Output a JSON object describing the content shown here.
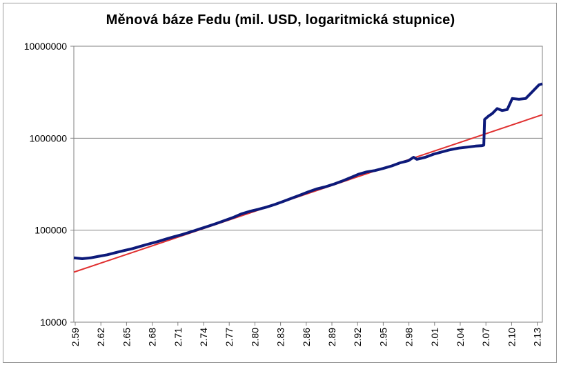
{
  "chart_data": {
    "type": "line",
    "title": "Měnová báze Fedu (mil. USD, logaritmická stupnice)",
    "xlabel": "",
    "ylabel": "",
    "yscale": "log",
    "ylim": [
      10000,
      10000000
    ],
    "y_ticks": [
      "10000",
      "100000",
      "1000000",
      "10000000"
    ],
    "x_tick_labels": [
      "2.59",
      "2.62",
      "2.65",
      "2.68",
      "2.71",
      "2.74",
      "2.77",
      "2.80",
      "2.83",
      "2.86",
      "2.89",
      "2.92",
      "2.95",
      "2.98",
      "2.01",
      "2.04",
      "2.07",
      "2.10",
      "2.13"
    ],
    "grid": "horizontal",
    "legend": "none",
    "series": [
      {
        "color": "#0d1a7a",
        "points": [
          [
            0.0,
            50000
          ],
          [
            0.5,
            49000
          ],
          [
            1.0,
            50000
          ],
          [
            1.5,
            52000
          ],
          [
            2.0,
            54000
          ],
          [
            2.5,
            57000
          ],
          [
            3.0,
            60000
          ],
          [
            3.5,
            63000
          ],
          [
            4.0,
            67000
          ],
          [
            4.5,
            71000
          ],
          [
            5.0,
            75000
          ],
          [
            5.5,
            80000
          ],
          [
            6.0,
            85000
          ],
          [
            6.5,
            90000
          ],
          [
            7.0,
            96000
          ],
          [
            7.5,
            103000
          ],
          [
            8.0,
            110000
          ],
          [
            8.5,
            118000
          ],
          [
            9.0,
            127000
          ],
          [
            9.5,
            137000
          ],
          [
            10.0,
            150000
          ],
          [
            10.5,
            160000
          ],
          [
            11.0,
            168000
          ],
          [
            11.5,
            178000
          ],
          [
            12.0,
            190000
          ],
          [
            12.5,
            205000
          ],
          [
            13.0,
            222000
          ],
          [
            13.5,
            240000
          ],
          [
            14.0,
            260000
          ],
          [
            14.5,
            280000
          ],
          [
            15.0,
            295000
          ],
          [
            15.5,
            315000
          ],
          [
            16.0,
            340000
          ],
          [
            16.5,
            370000
          ],
          [
            17.0,
            405000
          ],
          [
            17.5,
            430000
          ],
          [
            18.0,
            445000
          ],
          [
            18.5,
            470000
          ],
          [
            19.0,
            500000
          ],
          [
            19.5,
            540000
          ],
          [
            20.0,
            570000
          ],
          [
            20.3,
            620000
          ],
          [
            20.5,
            590000
          ],
          [
            21.0,
            620000
          ],
          [
            21.5,
            670000
          ],
          [
            22.0,
            710000
          ],
          [
            22.5,
            750000
          ],
          [
            23.0,
            780000
          ],
          [
            23.5,
            800000
          ],
          [
            24.0,
            820000
          ],
          [
            24.4,
            830000
          ],
          [
            24.5,
            840000
          ],
          [
            24.55,
            1600000
          ],
          [
            24.8,
            1750000
          ],
          [
            25.0,
            1850000
          ],
          [
            25.3,
            2100000
          ],
          [
            25.6,
            2000000
          ],
          [
            25.9,
            2050000
          ],
          [
            26.2,
            2700000
          ],
          [
            26.6,
            2650000
          ],
          [
            27.0,
            2700000
          ],
          [
            27.4,
            3200000
          ],
          [
            27.8,
            3800000
          ],
          [
            28.0,
            3900000
          ]
        ]
      },
      {
        "color": "#e03030",
        "points": [
          [
            0.0,
            35000
          ],
          [
            28.0,
            1800000
          ]
        ]
      }
    ]
  }
}
